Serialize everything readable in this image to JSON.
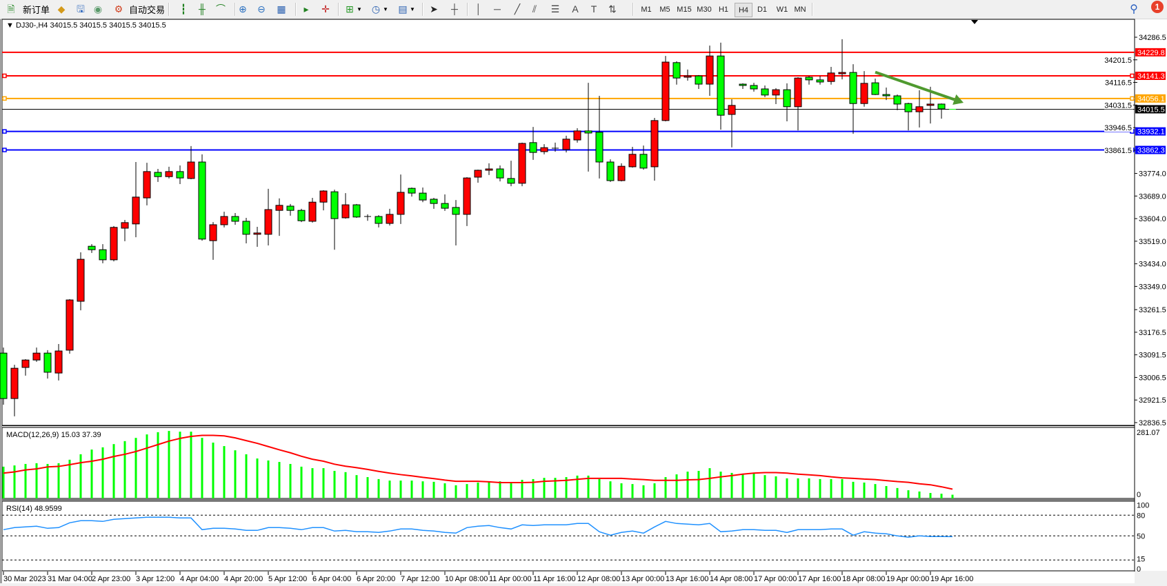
{
  "toolbar": {
    "items": [
      {
        "icon": "new-order-icon",
        "glyph": "🗎",
        "color": "#2a8a2a",
        "label": "新订单"
      },
      {
        "icon": "gold-icon",
        "glyph": "◆",
        "color": "#d49a1a"
      },
      {
        "icon": "history-center-icon",
        "glyph": "🖫",
        "color": "#3a70c0"
      },
      {
        "icon": "signal-icon",
        "glyph": "◉",
        "color": "#5a9a6a"
      },
      {
        "icon": "auto-trading-icon",
        "glyph": "⚙",
        "color": "#d04020",
        "label": "自动交易"
      },
      {
        "icon": "bar-chart-icon",
        "glyph": "┇",
        "color": "#208020"
      },
      {
        "icon": "candlestick-icon",
        "glyph": "╫",
        "color": "#208020"
      },
      {
        "icon": "line-chart-icon",
        "glyph": "⌒",
        "color": "#208020"
      },
      {
        "icon": "zoom-in-icon",
        "glyph": "⊕",
        "color": "#2a70c0"
      },
      {
        "icon": "zoom-out-icon",
        "glyph": "⊖",
        "color": "#2a70c0"
      },
      {
        "icon": "tile-windows-icon",
        "glyph": "▦",
        "color": "#2a60b0"
      },
      {
        "icon": "auto-scroll-icon",
        "glyph": "▸",
        "color": "#208020"
      },
      {
        "icon": "chart-shift-icon",
        "glyph": "✛",
        "color": "#c02020"
      },
      {
        "icon": "indicators-icon",
        "glyph": "⊞",
        "color": "#2a9a2a"
      },
      {
        "icon": "periods-icon",
        "glyph": "◷",
        "color": "#2a60b0"
      },
      {
        "icon": "templates-icon",
        "glyph": "▤",
        "color": "#2a60b0"
      },
      {
        "icon": "cursor-icon",
        "glyph": "➤",
        "color": "#222222"
      },
      {
        "icon": "crosshair-icon",
        "glyph": "┼",
        "color": "#444444"
      },
      {
        "icon": "vertical-line-icon",
        "glyph": "│",
        "color": "#444444"
      },
      {
        "icon": "horizontal-line-icon",
        "glyph": "─",
        "color": "#444444"
      },
      {
        "icon": "trendline-icon",
        "glyph": "╱",
        "color": "#444444"
      },
      {
        "icon": "equidistant-channel-icon",
        "glyph": "⫽",
        "color": "#444444"
      },
      {
        "icon": "fibonacci-icon",
        "glyph": "☰",
        "color": "#444444"
      },
      {
        "icon": "text-icon",
        "glyph": "A",
        "color": "#444444"
      },
      {
        "icon": "text-label-icon",
        "glyph": "T",
        "color": "#444444"
      },
      {
        "icon": "arrows-icon",
        "glyph": "⇅",
        "color": "#444444"
      }
    ],
    "timeframes": [
      "M1",
      "M5",
      "M15",
      "M30",
      "H1",
      "H4",
      "D1",
      "W1",
      "MN"
    ],
    "active_timeframe": "H4",
    "search_icon": "search-icon",
    "notification_count": "1"
  },
  "chart_title": "DJ30-,H4  34015.5 34015.5 34015.5 34015.5",
  "chart_data": {
    "type": "candlestick",
    "symbol": "DJ30-",
    "timeframe": "H4",
    "ylim": [
      32836.5,
      34286.5
    ],
    "y_ticks": [
      "34286.5",
      "34201.5",
      "34116.5",
      "34031.5",
      "33946.5",
      "33861.5",
      "33774.0",
      "33689.0",
      "33604.0",
      "33519.0",
      "33434.0",
      "33349.0",
      "33261.5",
      "33176.5",
      "33091.5",
      "33006.5",
      "32921.5",
      "32836.5"
    ],
    "x_labels": [
      "30 Mar 2023",
      "31 Mar 04:00",
      "2 Apr 23:00",
      "3 Apr 12:00",
      "4 Apr 04:00",
      "4 Apr 20:00",
      "5 Apr 12:00",
      "6 Apr 04:00",
      "6 Apr 20:00",
      "7 Apr 12:00",
      "10 Apr 08:00",
      "11 Apr 00:00",
      "11 Apr 16:00",
      "12 Apr 08:00",
      "13 Apr 00:00",
      "13 Apr 16:00",
      "14 Apr 08:00",
      "17 Apr 00:00",
      "17 Apr 16:00",
      "18 Apr 08:00",
      "19 Apr 00:00",
      "19 Apr 16:00"
    ],
    "colors": {
      "bull": "#ff0000",
      "bear": "#00ff00",
      "outline": "#000000"
    },
    "ohlc": [
      [
        33098,
        33119,
        32904,
        32927
      ],
      [
        32927,
        33054,
        32860,
        33041
      ],
      [
        33044,
        33075,
        33013,
        33072
      ],
      [
        33072,
        33119,
        33065,
        33098
      ],
      [
        33098,
        33109,
        33002,
        33026
      ],
      [
        33023,
        33132,
        32995,
        33106
      ],
      [
        33109,
        33301,
        33096,
        33298
      ],
      [
        33293,
        33477,
        33259,
        33451
      ],
      [
        33500,
        33508,
        33475,
        33487
      ],
      [
        33487,
        33508,
        33436,
        33449
      ],
      [
        33449,
        33576,
        33443,
        33571
      ],
      [
        33568,
        33599,
        33519,
        33589
      ],
      [
        33584,
        33817,
        33534,
        33685
      ],
      [
        33682,
        33814,
        33654,
        33781
      ],
      [
        33778,
        33791,
        33742,
        33762
      ],
      [
        33762,
        33799,
        33755,
        33781
      ],
      [
        33781,
        33804,
        33734,
        33757
      ],
      [
        33755,
        33877,
        33752,
        33817
      ],
      [
        33817,
        33846,
        33521,
        33527
      ],
      [
        33521,
        33591,
        33449,
        33581
      ],
      [
        33581,
        33630,
        33571,
        33612
      ],
      [
        33612,
        33625,
        33581,
        33594
      ],
      [
        33594,
        33607,
        33511,
        33545
      ],
      [
        33545,
        33573,
        33498,
        33550
      ],
      [
        33545,
        33716,
        33503,
        33638
      ],
      [
        33635,
        33680,
        33539,
        33654
      ],
      [
        33651,
        33659,
        33615,
        33635
      ],
      [
        33635,
        33641,
        33591,
        33596
      ],
      [
        33594,
        33682,
        33589,
        33666
      ],
      [
        33666,
        33711,
        33635,
        33708
      ],
      [
        33705,
        33713,
        33487,
        33604
      ],
      [
        33607,
        33700,
        33604,
        33656
      ],
      [
        33656,
        33659,
        33607,
        33610
      ],
      [
        33612,
        33620,
        33596,
        33612
      ],
      [
        33612,
        33617,
        33571,
        33586
      ],
      [
        33586,
        33641,
        33578,
        33620
      ],
      [
        33620,
        33770,
        33584,
        33703
      ],
      [
        33718,
        33721,
        33687,
        33700
      ],
      [
        33700,
        33721,
        33666,
        33674
      ],
      [
        33677,
        33682,
        33641,
        33661
      ],
      [
        33661,
        33695,
        33633,
        33643
      ],
      [
        33646,
        33674,
        33503,
        33620
      ],
      [
        33620,
        33760,
        33576,
        33757
      ],
      [
        33760,
        33788,
        33739,
        33786
      ],
      [
        33786,
        33812,
        33768,
        33791
      ],
      [
        33791,
        33804,
        33744,
        33757
      ],
      [
        33755,
        33822,
        33726,
        33737
      ],
      [
        33737,
        33890,
        33726,
        33887
      ],
      [
        33890,
        33949,
        33825,
        33853
      ],
      [
        33856,
        33884,
        33846,
        33871
      ],
      [
        33869,
        33890,
        33856,
        33869
      ],
      [
        33864,
        33916,
        33853,
        33903
      ],
      [
        33900,
        33944,
        33890,
        33934
      ],
      [
        33934,
        34115,
        33781,
        33926
      ],
      [
        33929,
        34066,
        33755,
        33817
      ],
      [
        33817,
        33827,
        33742,
        33747
      ],
      [
        33747,
        33812,
        33744,
        33801
      ],
      [
        33799,
        33874,
        33796,
        33846
      ],
      [
        33846,
        33879,
        33788,
        33794
      ],
      [
        33799,
        33983,
        33747,
        33973
      ],
      [
        33973,
        34216,
        33970,
        34193
      ],
      [
        34191,
        34196,
        34108,
        34133
      ],
      [
        34136,
        34165,
        34123,
        34141
      ],
      [
        34141,
        34144,
        34092,
        34110
      ],
      [
        34110,
        34255,
        34066,
        34216
      ],
      [
        34216,
        34266,
        33939,
        33993
      ],
      [
        33996,
        34053,
        33872,
        34030
      ],
      [
        34110,
        34113,
        34092,
        34105
      ],
      [
        34105,
        34115,
        34082,
        34092
      ],
      [
        34092,
        34105,
        34061,
        34069
      ],
      [
        34069,
        34095,
        34035,
        34089
      ],
      [
        34089,
        34113,
        33970,
        34025
      ],
      [
        34025,
        34136,
        33936,
        34133
      ],
      [
        34136,
        34141,
        34108,
        34126
      ],
      [
        34126,
        34141,
        34108,
        34118
      ],
      [
        34120,
        34175,
        34108,
        34152
      ],
      [
        34149,
        34279,
        34128,
        34154
      ],
      [
        34154,
        34185,
        33923,
        34037
      ],
      [
        34037,
        34159,
        34025,
        34113
      ],
      [
        34115,
        34131,
        34069,
        34071
      ],
      [
        34071,
        34097,
        34050,
        34066
      ],
      [
        34066,
        34071,
        34012,
        34035
      ],
      [
        34037,
        34040,
        33936,
        34006
      ],
      [
        34006,
        34087,
        33947,
        34025
      ],
      [
        34030,
        34100,
        33962,
        34035
      ],
      [
        34035,
        34037,
        33980,
        34017
      ],
      [
        34015.5,
        34015.5,
        34015.5,
        34015.5
      ]
    ],
    "horizontal_lines": [
      {
        "price": "34229.8",
        "color": "#ff0000"
      },
      {
        "price": "34141.3",
        "color": "#ff0000"
      },
      {
        "price": "34056.1",
        "color": "#ffa500"
      },
      {
        "price": "33932.1",
        "color": "#0000ff"
      },
      {
        "price": "33862.3",
        "color": "#0000ff"
      }
    ],
    "bid_line": {
      "price": "34015.5",
      "color": "#000000"
    },
    "trend_arrow": {
      "from": {
        "bar": 80,
        "price": 34155
      },
      "to": {
        "bar": 88,
        "price": 34040
      },
      "color": "#4f9a2f"
    },
    "macd": {
      "label": "MACD(12,26,9) 15.03 37.39",
      "scale_max": "281.07",
      "scale_min": "0",
      "histogram_color": "#00ff00",
      "signal_color": "#ff0000",
      "histogram": [
        128,
        133,
        139,
        142,
        139,
        142,
        156,
        178,
        197,
        206,
        219,
        231,
        244,
        258,
        267,
        272,
        269,
        269,
        244,
        225,
        211,
        194,
        178,
        161,
        153,
        147,
        139,
        128,
        122,
        122,
        111,
        106,
        94,
        86,
        78,
        72,
        72,
        72,
        69,
        67,
        61,
        53,
        58,
        64,
        67,
        69,
        61,
        75,
        78,
        83,
        83,
        86,
        92,
        92,
        78,
        69,
        61,
        58,
        53,
        61,
        86,
        97,
        108,
        111,
        122,
        108,
        103,
        97,
        100,
        94,
        89,
        81,
        81,
        81,
        78,
        78,
        78,
        67,
        64,
        58,
        50,
        42,
        33,
        28,
        22,
        19,
        15.03
      ],
      "signal": [
        102,
        107,
        115,
        119,
        127,
        129,
        136,
        144,
        150,
        158,
        169,
        178,
        189,
        203,
        217,
        231,
        242,
        250,
        254,
        254,
        252,
        244,
        233,
        222,
        209,
        196,
        184,
        170,
        158,
        150,
        138,
        130,
        124,
        117,
        109,
        102,
        96,
        91,
        85,
        80,
        74,
        69,
        69,
        69,
        67,
        64,
        64,
        64,
        65,
        69,
        71,
        73,
        77,
        81,
        81,
        81,
        81,
        78,
        76,
        73,
        73,
        73,
        75,
        76,
        81,
        87,
        92,
        98,
        102,
        104,
        104,
        102,
        98,
        95,
        92,
        87,
        83,
        81,
        78,
        76,
        72,
        68,
        65,
        59,
        55,
        47,
        37.39
      ]
    },
    "rsi": {
      "label": "RSI(14) 48.9599",
      "levels": [
        "100",
        "80",
        "50",
        "15",
        "0"
      ],
      "color": "#1e90ff",
      "values": [
        59,
        62,
        63,
        64,
        61,
        62,
        69,
        72,
        72,
        71,
        74,
        75,
        76,
        77,
        77,
        77,
        76,
        76,
        59,
        61,
        61,
        60,
        58,
        58,
        62,
        62,
        61,
        59,
        62,
        62,
        57,
        58,
        56,
        56,
        55,
        57,
        60,
        60,
        58,
        57,
        55,
        54,
        62,
        64,
        65,
        62,
        60,
        66,
        65,
        66,
        66,
        66,
        68,
        68,
        56,
        51,
        55,
        57,
        54,
        63,
        71,
        68,
        67,
        66,
        68,
        56,
        57,
        59,
        59,
        58,
        58,
        55,
        59,
        59,
        59,
        60,
        60,
        51,
        56,
        54,
        53,
        50,
        48,
        50,
        49,
        49,
        48.9599
      ]
    }
  }
}
